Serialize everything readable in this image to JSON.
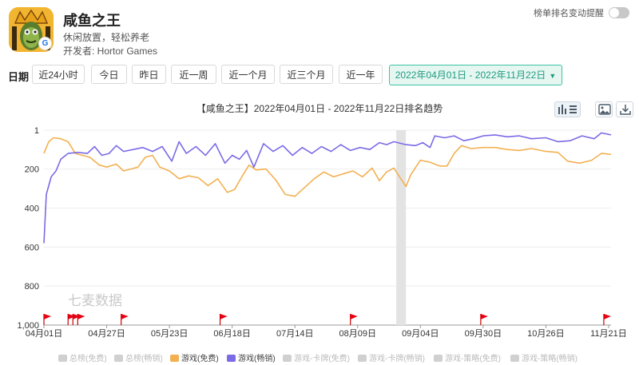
{
  "app": {
    "name": "咸鱼之王",
    "slogan": "休闲放置，轻松养老",
    "developer": "开发者: Hortor Games"
  },
  "toggle": {
    "label": "榜单排名变动提醒"
  },
  "date_filter": {
    "label": "日期",
    "buttons": [
      "近24小时",
      "今日",
      "昨日",
      "近一周",
      "近一个月",
      "近三个月",
      "近一年"
    ],
    "range": "2022年04月01日 - 2022年11月22日"
  },
  "colors": {
    "accent": "#3ec3a5",
    "free": "#f3b052",
    "paid": "#7b6be6"
  },
  "watermark": "七麦数据",
  "chart_data": {
    "type": "line",
    "title": "【咸鱼之王】2022年04月01日 - 2022年11月22日排名趋势",
    "y_reversed": true,
    "ylim": [
      1,
      1000
    ],
    "y_ticks": [
      "1",
      "200",
      "400",
      "600",
      "800",
      "1,000"
    ],
    "x_range": [
      "2022-04-01",
      "2022-11-22"
    ],
    "x_ticks": [
      "04月01日",
      "04月27日",
      "05月23日",
      "06月18日",
      "07月14日",
      "08月09日",
      "09月04日",
      "09月30日",
      "10月26日",
      "11月21日"
    ],
    "gap": [
      "2022-08-25",
      "2022-08-29"
    ],
    "series": [
      {
        "name": "游戏(免费)",
        "color": "#f3b052",
        "points": [
          [
            "2022-04-01",
            120
          ],
          [
            "2022-04-03",
            60
          ],
          [
            "2022-04-05",
            40
          ],
          [
            "2022-04-08",
            45
          ],
          [
            "2022-04-11",
            60
          ],
          [
            "2022-04-14",
            120
          ],
          [
            "2022-04-17",
            130
          ],
          [
            "2022-04-20",
            140
          ],
          [
            "2022-04-24",
            180
          ],
          [
            "2022-04-27",
            190
          ],
          [
            "2022-05-01",
            175
          ],
          [
            "2022-05-04",
            210
          ],
          [
            "2022-05-07",
            200
          ],
          [
            "2022-05-10",
            190
          ],
          [
            "2022-05-13",
            140
          ],
          [
            "2022-05-16",
            130
          ],
          [
            "2022-05-19",
            190
          ],
          [
            "2022-05-23",
            210
          ],
          [
            "2022-05-27",
            250
          ],
          [
            "2022-05-31",
            235
          ],
          [
            "2022-06-04",
            245
          ],
          [
            "2022-06-08",
            285
          ],
          [
            "2022-06-12",
            250
          ],
          [
            "2022-06-16",
            320
          ],
          [
            "2022-06-19",
            305
          ],
          [
            "2022-06-22",
            240
          ],
          [
            "2022-06-25",
            180
          ],
          [
            "2022-06-28",
            205
          ],
          [
            "2022-07-02",
            200
          ],
          [
            "2022-07-06",
            255
          ],
          [
            "2022-07-10",
            330
          ],
          [
            "2022-07-14",
            340
          ],
          [
            "2022-07-18",
            295
          ],
          [
            "2022-07-22",
            250
          ],
          [
            "2022-07-26",
            215
          ],
          [
            "2022-07-30",
            240
          ],
          [
            "2022-08-03",
            225
          ],
          [
            "2022-08-07",
            210
          ],
          [
            "2022-08-11",
            240
          ],
          [
            "2022-08-15",
            195
          ],
          [
            "2022-08-18",
            260
          ],
          [
            "2022-08-21",
            215
          ],
          [
            "2022-08-24",
            195
          ],
          [
            "2022-08-29",
            290
          ],
          [
            "2022-08-31",
            230
          ],
          [
            "2022-09-04",
            155
          ],
          [
            "2022-09-08",
            165
          ],
          [
            "2022-09-12",
            185
          ],
          [
            "2022-09-15",
            185
          ],
          [
            "2022-09-18",
            120
          ],
          [
            "2022-09-21",
            80
          ],
          [
            "2022-09-25",
            95
          ],
          [
            "2022-09-30",
            90
          ],
          [
            "2022-10-05",
            90
          ],
          [
            "2022-10-10",
            100
          ],
          [
            "2022-10-15",
            105
          ],
          [
            "2022-10-20",
            95
          ],
          [
            "2022-10-26",
            110
          ],
          [
            "2022-10-31",
            115
          ],
          [
            "2022-11-04",
            160
          ],
          [
            "2022-11-09",
            170
          ],
          [
            "2022-11-14",
            155
          ],
          [
            "2022-11-18",
            120
          ],
          [
            "2022-11-22",
            125
          ]
        ]
      },
      {
        "name": "游戏(畅销)",
        "color": "#7b6be6",
        "points": [
          [
            "2022-04-01",
            580
          ],
          [
            "2022-04-02",
            330
          ],
          [
            "2022-04-04",
            240
          ],
          [
            "2022-04-06",
            210
          ],
          [
            "2022-04-08",
            150
          ],
          [
            "2022-04-11",
            120
          ],
          [
            "2022-04-15",
            115
          ],
          [
            "2022-04-19",
            120
          ],
          [
            "2022-04-22",
            85
          ],
          [
            "2022-04-25",
            130
          ],
          [
            "2022-04-28",
            120
          ],
          [
            "2022-05-01",
            80
          ],
          [
            "2022-05-04",
            110
          ],
          [
            "2022-05-08",
            100
          ],
          [
            "2022-05-12",
            90
          ],
          [
            "2022-05-16",
            110
          ],
          [
            "2022-05-20",
            85
          ],
          [
            "2022-05-24",
            160
          ],
          [
            "2022-05-27",
            60
          ],
          [
            "2022-05-30",
            120
          ],
          [
            "2022-06-03",
            85
          ],
          [
            "2022-06-07",
            130
          ],
          [
            "2022-06-11",
            70
          ],
          [
            "2022-06-15",
            170
          ],
          [
            "2022-06-18",
            130
          ],
          [
            "2022-06-21",
            150
          ],
          [
            "2022-06-24",
            105
          ],
          [
            "2022-06-27",
            190
          ],
          [
            "2022-07-01",
            70
          ],
          [
            "2022-07-05",
            110
          ],
          [
            "2022-07-09",
            80
          ],
          [
            "2022-07-13",
            130
          ],
          [
            "2022-07-17",
            90
          ],
          [
            "2022-07-21",
            120
          ],
          [
            "2022-07-25",
            85
          ],
          [
            "2022-07-29",
            110
          ],
          [
            "2022-08-02",
            75
          ],
          [
            "2022-08-06",
            105
          ],
          [
            "2022-08-10",
            90
          ],
          [
            "2022-08-14",
            100
          ],
          [
            "2022-08-18",
            65
          ],
          [
            "2022-08-21",
            75
          ],
          [
            "2022-08-24",
            60
          ],
          [
            "2022-08-29",
            75
          ],
          [
            "2022-09-02",
            80
          ],
          [
            "2022-09-05",
            65
          ],
          [
            "2022-09-08",
            90
          ],
          [
            "2022-09-10",
            30
          ],
          [
            "2022-09-14",
            40
          ],
          [
            "2022-09-18",
            30
          ],
          [
            "2022-09-22",
            55
          ],
          [
            "2022-09-26",
            45
          ],
          [
            "2022-09-30",
            30
          ],
          [
            "2022-10-05",
            25
          ],
          [
            "2022-10-10",
            35
          ],
          [
            "2022-10-15",
            30
          ],
          [
            "2022-10-20",
            45
          ],
          [
            "2022-10-26",
            40
          ],
          [
            "2022-10-31",
            60
          ],
          [
            "2022-11-05",
            55
          ],
          [
            "2022-11-10",
            30
          ],
          [
            "2022-11-15",
            45
          ],
          [
            "2022-11-18",
            15
          ],
          [
            "2022-11-22",
            25
          ]
        ]
      }
    ],
    "flags": [
      "2022-04-01",
      "2022-04-11",
      "2022-04-13",
      "2022-04-15",
      "2022-05-03",
      "2022-06-13",
      "2022-08-06",
      "2022-09-29",
      "2022-11-19"
    ],
    "legend": [
      {
        "label": "总榜(免费)",
        "active": false,
        "color": "#d0d0d0"
      },
      {
        "label": "总榜(畅销)",
        "active": false,
        "color": "#d0d0d0"
      },
      {
        "label": "游戏(免费)",
        "active": true,
        "color": "#f3b052"
      },
      {
        "label": "游戏(畅销)",
        "active": true,
        "color": "#7b6be6"
      },
      {
        "label": "游戏-卡牌(免费)",
        "active": false,
        "color": "#d0d0d0"
      },
      {
        "label": "游戏-卡牌(畅销)",
        "active": false,
        "color": "#d0d0d0"
      },
      {
        "label": "游戏-策略(免费)",
        "active": false,
        "color": "#d0d0d0"
      },
      {
        "label": "游戏-策略(畅销)",
        "active": false,
        "color": "#d0d0d0"
      }
    ]
  }
}
